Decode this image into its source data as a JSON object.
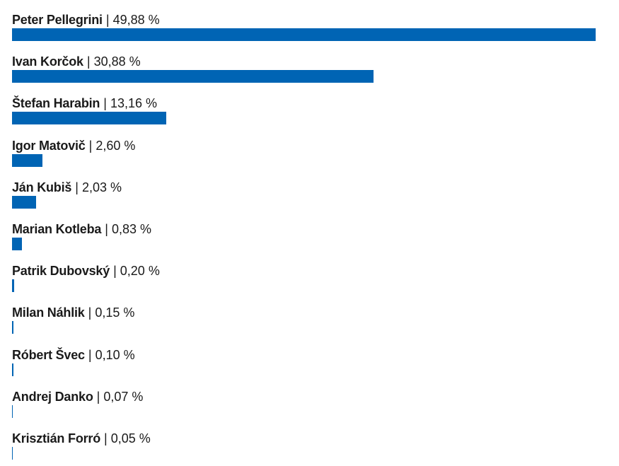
{
  "chart_data": {
    "type": "bar",
    "orientation": "horizontal",
    "bar_color": "#0064b4",
    "max_scale": 49.88,
    "unit": "%",
    "separator": "|",
    "categories": [
      "Peter Pellegrini",
      "Ivan Korčok",
      "Štefan Harabin",
      "Igor Matovič",
      "Ján Kubiš",
      "Marian Kotleba",
      "Patrik Dubovský",
      "Milan Náhlik",
      "Róbert Švec",
      "Andrej Danko",
      "Krisztián Forró"
    ],
    "values": [
      49.88,
      30.88,
      13.16,
      2.6,
      2.03,
      0.83,
      0.2,
      0.15,
      0.1,
      0.07,
      0.05
    ],
    "value_labels": [
      "49,88 %",
      "30,88 %",
      "13,16 %",
      "2,60 %",
      "2,03 %",
      "0,83 %",
      "0,20 %",
      "0,15 %",
      "0,10 %",
      "0,07 %",
      "0,05 %"
    ]
  }
}
